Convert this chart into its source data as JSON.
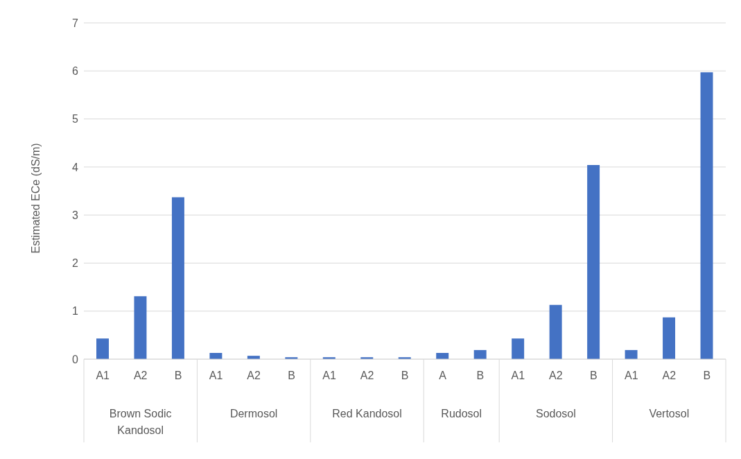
{
  "chart_data": {
    "type": "bar",
    "ylabel": "Estimated ECe (dS/m)",
    "categories": [
      "A1",
      "A2",
      "B",
      "A1",
      "A2",
      "B",
      "A1",
      "A2",
      "B",
      "A",
      "B",
      "A1",
      "A2",
      "B",
      "A1",
      "A2",
      "B"
    ],
    "annotations": [
      "Brown Sodic Kandosol",
      "Dermosol",
      "Red Kandosol",
      "Rudosol",
      "Sodosol",
      "Vertosol"
    ],
    "values": [
      0.43,
      1.31,
      3.37,
      0.13,
      0.07,
      0.04,
      0.04,
      0.04,
      0.04,
      0.13,
      0.19,
      0.43,
      1.13,
      4.04,
      0.19,
      0.87,
      5.97
    ],
    "color": "#4472c4",
    "ylim": [
      0,
      7
    ],
    "yticks": [
      0,
      1,
      2,
      3,
      4,
      5,
      6,
      7
    ],
    "grid": "y"
  }
}
